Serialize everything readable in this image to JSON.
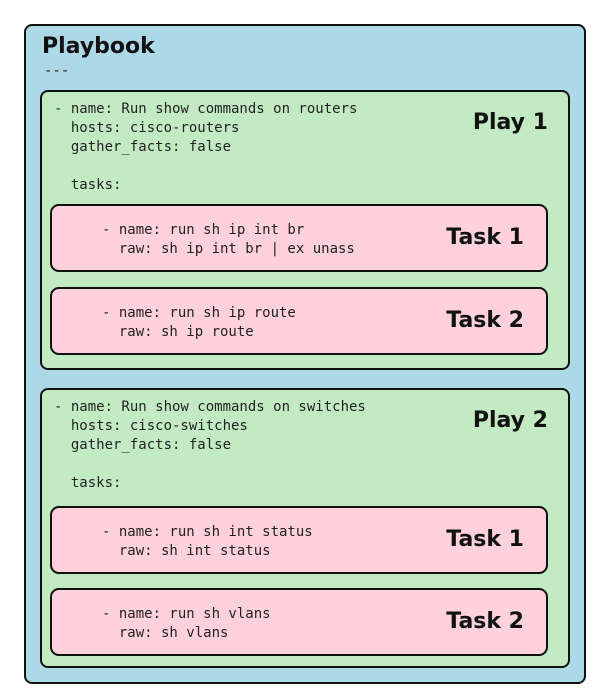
{
  "playbook": {
    "title": "Playbook",
    "separator": "---",
    "plays": [
      {
        "label": "Play 1",
        "code": "- name: Run show commands on routers\n  hosts: cisco-routers\n  gather_facts: false\n\n  tasks:",
        "tasks": [
          {
            "label": "Task 1",
            "code": "- name: run sh ip int br\n  raw: sh ip int br | ex unass"
          },
          {
            "label": "Task 2",
            "code": "- name: run sh ip route\n  raw: sh ip route"
          }
        ]
      },
      {
        "label": "Play 2",
        "code": "- name: Run show commands on switches\n  hosts: cisco-switches\n  gather_facts: false\n\n  tasks:",
        "tasks": [
          {
            "label": "Task 1",
            "code": "- name: run sh int status\n  raw: sh int status"
          },
          {
            "label": "Task 2",
            "code": "- name: run sh vlans\n  raw: sh vlans"
          }
        ]
      }
    ]
  },
  "colors": {
    "playbook_bg": "#add8e6",
    "play_bg": "#c3ebc3",
    "task_bg": "#ffd1dc",
    "border": "#111111"
  }
}
